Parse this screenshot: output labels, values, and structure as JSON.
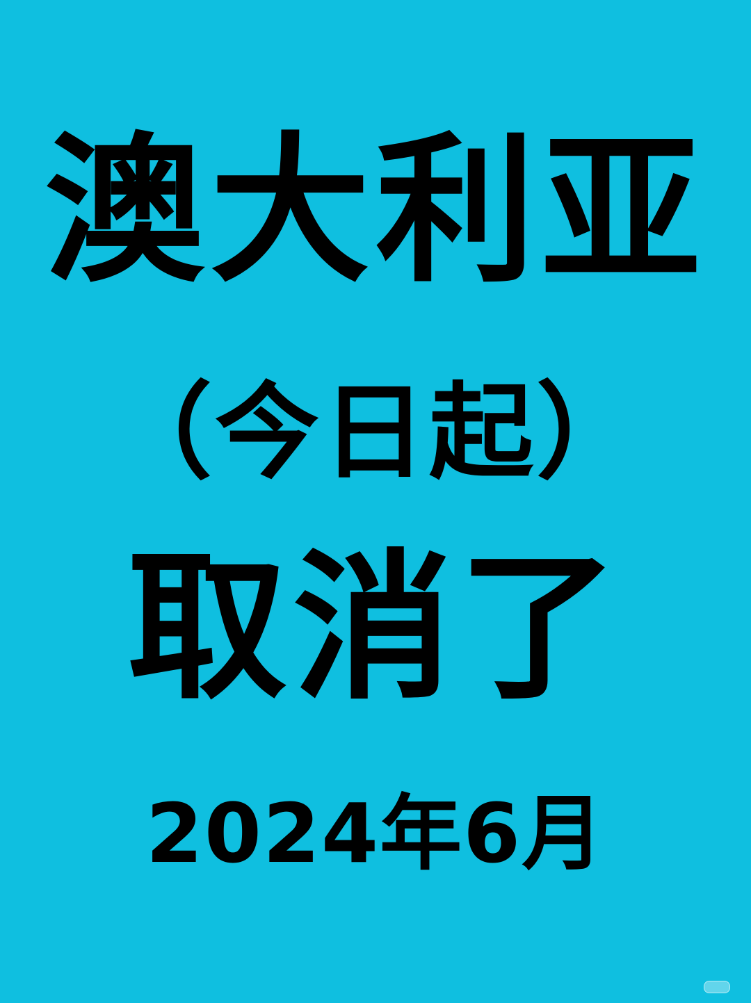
{
  "poster": {
    "headline": "澳大利亚",
    "subhead": "（今日起）",
    "status": "取消了",
    "date": "2024年6月"
  },
  "colors": {
    "background": "#0fbfe0",
    "text": "#000000"
  }
}
